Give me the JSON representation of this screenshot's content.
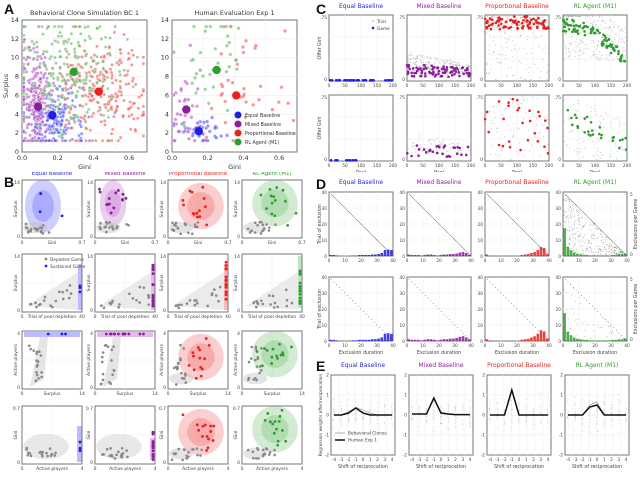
{
  "panel_letters": {
    "A": "A",
    "B": "B",
    "C": "C",
    "D": "D",
    "E": "E"
  },
  "colors": {
    "equal": "#1f1fe6",
    "mixed": "#8a1f9a",
    "proportional": "#e8221e",
    "rl": "#2e9e2e",
    "equal_light": "#4040ff",
    "mixed_light": "#b040c0",
    "proportional_light": "#f04040",
    "rl_light": "#50b050",
    "gray": "#888888"
  },
  "mechanisms": [
    {
      "key": "equal",
      "label": "Equal Baseline"
    },
    {
      "key": "mixed",
      "label": "Mixed Baseline"
    },
    {
      "key": "proportional",
      "label": "Proportional Baseline"
    },
    {
      "key": "rl",
      "label": "RL Agent (M1)"
    }
  ],
  "chart_data": [
    {
      "id": "A-left",
      "type": "scatter",
      "title": "Behavioral Clone Simulation BC 1",
      "xlabel": "Gini",
      "ylabel": "Surplus",
      "xlim": [
        0,
        0.7
      ],
      "ylim": [
        0,
        14
      ],
      "xticks": [
        "0.0",
        "0.2",
        "0.4",
        "0.6"
      ],
      "yticks": [
        "0",
        "2",
        "4",
        "6",
        "8",
        "10",
        "12",
        "14"
      ],
      "means": [
        {
          "series": "Equal Baseline",
          "x": 0.17,
          "y": 3.9
        },
        {
          "series": "Mixed Baseline",
          "x": 0.09,
          "y": 4.8
        },
        {
          "series": "Proportional Baseline",
          "x": 0.43,
          "y": 6.4
        },
        {
          "series": "RL Agent (M1)",
          "x": 0.29,
          "y": 8.5
        }
      ]
    },
    {
      "id": "A-right",
      "type": "scatter",
      "title": "Human Evaluation Exp 1",
      "xlabel": "Gini",
      "ylabel": "",
      "xlim": [
        0,
        0.7
      ],
      "ylim": [
        0,
        14
      ],
      "xticks": [
        "0.0",
        "0.2",
        "0.4",
        "0.6"
      ],
      "yticks": [
        "0",
        "2",
        "4",
        "6",
        "8",
        "10",
        "12",
        "14"
      ],
      "legend": [
        "Equal Baseline",
        "Mixed Baseline",
        "Proportional Baseline",
        "RL Agent (M1)"
      ],
      "legend_position": "bottom-right",
      "means": [
        {
          "series": "Equal Baseline",
          "x": 0.15,
          "y": 2.2
        },
        {
          "series": "Mixed Baseline",
          "x": 0.08,
          "y": 4.5
        },
        {
          "series": "Proportional Baseline",
          "x": 0.36,
          "y": 6.0
        },
        {
          "series": "RL Agent (M1)",
          "x": 0.25,
          "y": 8.7
        }
      ]
    },
    {
      "id": "B",
      "type": "scatter",
      "description": "4x4 grid of density + scatter plots per mechanism",
      "rows": [
        {
          "xlabel": "Gini",
          "ylabel": "Surplus",
          "xticks": [
            "0",
            "0.7"
          ],
          "yticks": [
            "0",
            "14"
          ]
        },
        {
          "xlabel": "Trial of pool depletion",
          "ylabel": "Surplus",
          "xticks": [
            "0",
            "40"
          ],
          "yticks": [
            "0",
            "14"
          ]
        },
        {
          "xlabel": "Surplus",
          "ylabel": "Active players",
          "xticks": [
            "0",
            "14"
          ],
          "yticks": [
            "0",
            "4"
          ]
        },
        {
          "xlabel": "Active players",
          "ylabel": "Gini",
          "xticks": [
            "0",
            "4"
          ],
          "yticks": [
            "0",
            "0.7"
          ]
        }
      ],
      "legend": [
        "Depleted Game",
        "Sustained Game"
      ]
    },
    {
      "id": "C",
      "type": "scatter",
      "xlabel": "Pool",
      "ylabel": "Offer Gini",
      "xlim": [
        0,
        200
      ],
      "ylim": [
        0,
        0.75
      ],
      "xticks": [
        "0",
        "50",
        "100",
        "150",
        "200"
      ],
      "yticks": [
        "0",
        ".75"
      ],
      "legend": [
        "Trial",
        "Game"
      ]
    },
    {
      "id": "D",
      "type": "bar",
      "xlabel": "Exclusion duration",
      "ylabel": "Trial of exclusion",
      "ylabel_right": "Exclusions per Game",
      "xlim": [
        0,
        40
      ],
      "ylim": [
        0,
        40
      ],
      "xticks": [
        "0",
        "10",
        "20",
        "30",
        "40"
      ],
      "yticks": [
        "0",
        "10",
        "20",
        "30",
        "40"
      ],
      "right_yticks": [
        "0",
        "5"
      ]
    },
    {
      "id": "E",
      "type": "line",
      "xlabel": "Shift of reciprocation",
      "ylabel": "Regression weights offer/reciprocation",
      "xlim": [
        -4,
        4
      ],
      "ylim": [
        -2,
        2
      ],
      "xticks": [
        "-4",
        "-3",
        "-2",
        "-1",
        "0",
        "1",
        "2",
        "3",
        "4"
      ],
      "yticks": [
        "-2",
        "-1",
        "0",
        "1",
        "2"
      ],
      "legend": [
        "Behavioral Clones",
        "Human Exp 1"
      ],
      "x": [
        -4,
        -3,
        -2,
        -1,
        0,
        1,
        2,
        3,
        4
      ],
      "series": [
        {
          "mechanism": "Equal Baseline",
          "human": [
            0,
            0,
            0.1,
            0.35,
            0.1,
            0,
            0,
            0,
            0
          ],
          "clones": [
            0,
            0,
            0.15,
            0.38,
            0.25,
            0.1,
            0,
            0,
            0
          ]
        },
        {
          "mechanism": "Mixed Baseline",
          "human": [
            0.05,
            0.05,
            0.05,
            0.85,
            0.1,
            0.05,
            0.02,
            0.02,
            0.02
          ],
          "clones": [
            0.05,
            0.05,
            0.05,
            0.8,
            0.12,
            0.05,
            0.02,
            0.02,
            0.02
          ]
        },
        {
          "mechanism": "Proportional Baseline",
          "human": [
            0,
            0,
            0,
            1.25,
            0,
            0,
            0,
            0,
            0
          ],
          "clones": [
            0,
            0,
            0,
            1.2,
            0,
            0,
            0,
            0,
            0
          ]
        },
        {
          "mechanism": "RL Agent (M1)",
          "human": [
            0,
            0,
            0,
            0.4,
            0.5,
            0,
            0,
            0,
            0
          ],
          "clones": [
            0,
            0,
            0,
            0.5,
            0.65,
            0,
            0,
            0,
            0
          ]
        }
      ]
    }
  ]
}
